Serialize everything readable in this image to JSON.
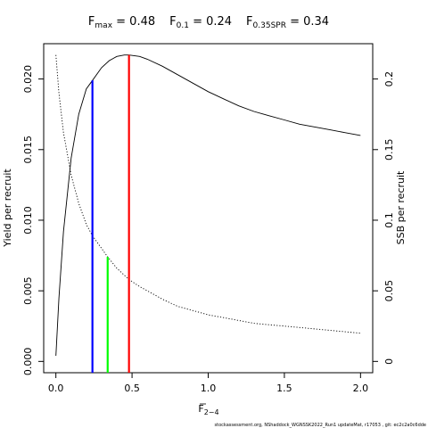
{
  "chart_data": {
    "type": "line",
    "header": {
      "fmax": {
        "name": "F",
        "sub": "max",
        "rest": " = 0.48"
      },
      "f01": {
        "name": "F",
        "sub": "0.1",
        "rest": " = 0.24"
      },
      "f35": {
        "name": "F",
        "sub": "0.35SPR",
        "rest": " = 0.34"
      }
    },
    "xlabel": {
      "main": "F",
      "sub": "2−4"
    },
    "ylabel": "Yield per recruit",
    "y2label": "SSB per recruit",
    "xlim": [
      -0.08,
      2.08
    ],
    "ylim": [
      -0.0008,
      0.0225
    ],
    "y2lim": [
      -0.008,
      0.225
    ],
    "xticks": [
      0.0,
      0.5,
      1.0,
      1.5,
      2.0
    ],
    "xtick_labels": [
      "0.0",
      "0.5",
      "1.0",
      "1.5",
      "2.0"
    ],
    "yticks": [
      0.0,
      0.005,
      0.01,
      0.015,
      0.02
    ],
    "ytick_labels": [
      "0.000",
      "0.005",
      "0.010",
      "0.015",
      "0.020"
    ],
    "y2ticks": [
      0.0,
      0.05,
      0.1,
      0.15,
      0.2
    ],
    "y2tick_labels": [
      "0",
      "0.05",
      "0.1",
      "0.15",
      "0.2"
    ],
    "grid": false,
    "series": [
      {
        "axis": "left",
        "style": "solid",
        "color": "#000000",
        "x": [
          0.0,
          0.02,
          0.05,
          0.1,
          0.15,
          0.2,
          0.24,
          0.3,
          0.35,
          0.4,
          0.45,
          0.48,
          0.55,
          0.6,
          0.7,
          0.8,
          0.9,
          1.0,
          1.1,
          1.2,
          1.3,
          1.4,
          1.5,
          1.6,
          1.7,
          1.8,
          1.9,
          2.0
        ],
        "y": [
          0.0004,
          0.0045,
          0.0092,
          0.0144,
          0.0175,
          0.0193,
          0.0199,
          0.0208,
          0.0213,
          0.0216,
          0.0217,
          0.0217,
          0.0216,
          0.0214,
          0.0209,
          0.0203,
          0.0197,
          0.0191,
          0.0186,
          0.0181,
          0.0177,
          0.0174,
          0.0171,
          0.0168,
          0.0166,
          0.0164,
          0.0162,
          0.016
        ]
      },
      {
        "axis": "right",
        "style": "dotted",
        "color": "#000000",
        "x": [
          0.0,
          0.02,
          0.05,
          0.1,
          0.15,
          0.2,
          0.24,
          0.3,
          0.34,
          0.4,
          0.48,
          0.55,
          0.6,
          0.7,
          0.8,
          0.9,
          1.0,
          1.1,
          1.2,
          1.3,
          1.4,
          1.5,
          1.6,
          1.7,
          1.8,
          1.9,
          2.0
        ],
        "y": [
          0.217,
          0.19,
          0.162,
          0.132,
          0.112,
          0.097,
          0.089,
          0.08,
          0.074,
          0.066,
          0.058,
          0.053,
          0.05,
          0.044,
          0.039,
          0.036,
          0.033,
          0.031,
          0.029,
          0.027,
          0.026,
          0.025,
          0.024,
          0.023,
          0.022,
          0.021,
          0.02
        ]
      }
    ],
    "reference_lines": [
      {
        "name": "F0.1",
        "x": 0.24,
        "y_top": 0.0199,
        "color": "#0000ff"
      },
      {
        "name": "F0.35SPR",
        "x": 0.34,
        "y_top": 0.0074,
        "color": "#00ff00"
      },
      {
        "name": "Fmax",
        "x": 0.48,
        "y_top": 0.0217,
        "color": "#ff0000"
      }
    ],
    "footer": "stockassessment.org,  NShaddock_WGNSSK2022_Run1  updateMat,  r17053 ,  git:  ec2c2a0c6dde"
  }
}
